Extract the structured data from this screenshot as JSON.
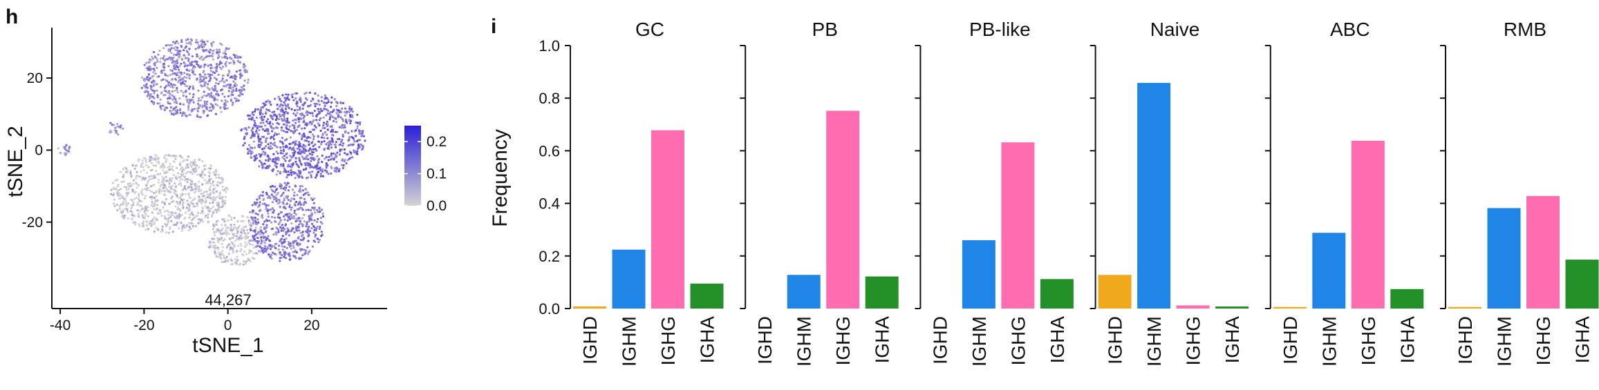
{
  "panel_labels": {
    "h": "h",
    "i": "i"
  },
  "chart_data": [
    {
      "type": "scatter",
      "panel": "h",
      "xlabel": "tSNE_1",
      "ylabel": "tSNE_2",
      "xticks": [
        "-40",
        "-20",
        "0",
        "20"
      ],
      "yticks": [
        "20",
        "0",
        "-20"
      ],
      "xlim": [
        -42,
        38
      ],
      "ylim": [
        -44,
        34
      ],
      "annotation": "44,267",
      "colorbar": {
        "ticks": [
          "0.2",
          "0.1",
          "0.0"
        ],
        "min": 0.0,
        "max": 0.25,
        "low_color": "#d3d3d3",
        "high_color": "#1f1fd9"
      },
      "clusters": [
        {
          "cx": -8,
          "cy": 20,
          "rx": 13,
          "ry": 11,
          "level": 0.12
        },
        {
          "cx": 18,
          "cy": 4,
          "rx": 15,
          "ry": 12,
          "level": 0.16
        },
        {
          "cx": -14,
          "cy": -12,
          "rx": 14,
          "ry": 11,
          "level": 0.01
        },
        {
          "cx": 2,
          "cy": -25,
          "rx": 7,
          "ry": 7,
          "level": 0.01
        },
        {
          "cx": 14,
          "cy": -20,
          "rx": 9,
          "ry": 11,
          "level": 0.14
        },
        {
          "cx": -27,
          "cy": 6,
          "rx": 2,
          "ry": 2,
          "level": 0.1
        },
        {
          "cx": -39,
          "cy": 0,
          "rx": 1.5,
          "ry": 2,
          "level": 0.1
        }
      ]
    },
    {
      "type": "bar",
      "panel": "i",
      "ylabel": "Frequency",
      "ylim": [
        0,
        1.0
      ],
      "yticks": [
        "0.0",
        "0.2",
        "0.4",
        "0.6",
        "0.8",
        "1.0"
      ],
      "categories": [
        "IGHD",
        "IGHM",
        "IGHG",
        "IGHA"
      ],
      "colors": [
        "#f0a91c",
        "#1f86e8",
        "#ff6db0",
        "#239028"
      ],
      "facets": [
        {
          "title": "GC",
          "values": [
            0.008,
            0.224,
            0.678,
            0.095
          ]
        },
        {
          "title": "PB",
          "values": [
            0.0,
            0.128,
            0.752,
            0.122
          ]
        },
        {
          "title": "PB-like",
          "values": [
            0.0,
            0.26,
            0.632,
            0.112
          ]
        },
        {
          "title": "Naive",
          "values": [
            0.128,
            0.858,
            0.012,
            0.008
          ]
        },
        {
          "title": "ABC",
          "values": [
            0.006,
            0.288,
            0.638,
            0.074
          ]
        },
        {
          "title": "RMB",
          "values": [
            0.006,
            0.382,
            0.428,
            0.186
          ]
        }
      ]
    }
  ]
}
